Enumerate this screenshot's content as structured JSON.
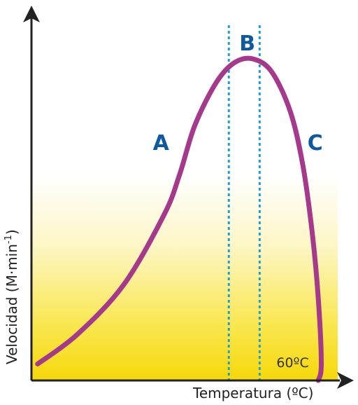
{
  "chart_data": {
    "type": "line",
    "xlabel": "Temperatura (ºC)",
    "ylabel": "Velocidad (M·min",
    "ylabel_sup": "-1",
    "ylabel_close": ")",
    "grid": false,
    "series": [
      {
        "color": "#a5398c",
        "points": [
          {
            "x": 0.02,
            "y": 0.05
          },
          {
            "x": 0.15,
            "y": 0.14
          },
          {
            "x": 0.3,
            "y": 0.29
          },
          {
            "x": 0.43,
            "y": 0.5
          },
          {
            "x": 0.48,
            "y": 0.62
          },
          {
            "x": 0.53,
            "y": 0.77
          },
          {
            "x": 0.6,
            "y": 0.9
          },
          {
            "x": 0.66,
            "y": 0.96
          },
          {
            "x": 0.72,
            "y": 0.97
          },
          {
            "x": 0.78,
            "y": 0.93
          },
          {
            "x": 0.84,
            "y": 0.81
          },
          {
            "x": 0.88,
            "y": 0.65
          },
          {
            "x": 0.91,
            "y": 0.45
          },
          {
            "x": 0.93,
            "y": 0.25
          },
          {
            "x": 0.94,
            "y": 0.05
          },
          {
            "x": 0.93,
            "y": 0.0
          }
        ]
      }
    ],
    "regions": [
      {
        "label": "A",
        "x": 0.42,
        "y": 0.7
      },
      {
        "label": "B",
        "x": 0.7,
        "y": 1.0
      },
      {
        "label": "C",
        "x": 0.92,
        "y": 0.7
      }
    ],
    "reference_lines": [
      {
        "x": 0.64,
        "style": "dotted"
      },
      {
        "x": 0.74,
        "style": "dotted"
      }
    ],
    "annotations": [
      {
        "text": "60ºC",
        "x": 0.79,
        "y": 0.04
      }
    ],
    "colors": {
      "curve": "#a5398c",
      "region_labels": "#0d5a9e",
      "reference_lines": "#1e9ed6",
      "background_top": "#ffffff",
      "background_bottom": "#f6d80a",
      "axes": "#222222"
    }
  }
}
